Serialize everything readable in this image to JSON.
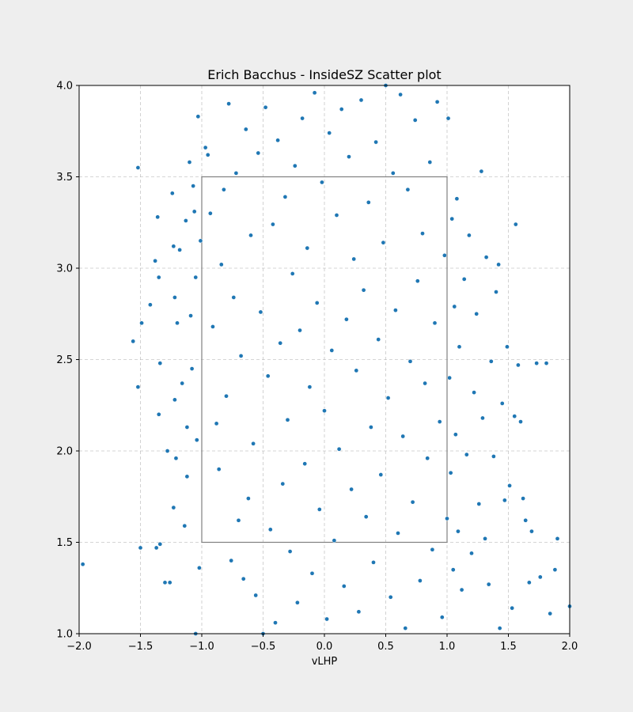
{
  "chart_data": {
    "type": "scatter",
    "title": "Erich Bacchus - InsideSZ Scatter plot",
    "xlabel": "vLHP",
    "ylabel": "",
    "xlim": [
      -2.0,
      2.0
    ],
    "ylim": [
      1.0,
      4.0
    ],
    "xticks": [
      "−2.0",
      "−1.5",
      "−1.0",
      "−0.5",
      "0.0",
      "0.5",
      "1.0",
      "1.5",
      "2.0"
    ],
    "yticks": [
      "1.0",
      "1.5",
      "2.0",
      "2.5",
      "3.0",
      "3.5",
      "4.0"
    ],
    "grid": true,
    "legend": "none",
    "strike_zone": {
      "x": [
        -1.0,
        1.0
      ],
      "y": [
        1.5,
        3.5
      ]
    },
    "marker_color": "#1f77b4",
    "points": [
      [
        -1.97,
        1.38
      ],
      [
        -1.52,
        3.55
      ],
      [
        -1.52,
        2.35
      ],
      [
        -1.56,
        2.6
      ],
      [
        -1.49,
        2.7
      ],
      [
        -1.5,
        1.47
      ],
      [
        -1.42,
        2.8
      ],
      [
        -1.38,
        3.04
      ],
      [
        -1.36,
        3.28
      ],
      [
        -1.35,
        2.95
      ],
      [
        -1.34,
        2.48
      ],
      [
        -1.35,
        2.2
      ],
      [
        -1.37,
        1.47
      ],
      [
        -1.34,
        1.49
      ],
      [
        -1.3,
        1.28
      ],
      [
        -1.26,
        1.28
      ],
      [
        -1.28,
        2.0
      ],
      [
        -1.24,
        3.41
      ],
      [
        -1.23,
        3.12
      ],
      [
        -1.22,
        2.84
      ],
      [
        -1.22,
        2.28
      ],
      [
        -1.23,
        1.69
      ],
      [
        -1.21,
        1.96
      ],
      [
        -1.2,
        2.7
      ],
      [
        -1.18,
        3.1
      ],
      [
        -1.16,
        2.37
      ],
      [
        -1.14,
        1.59
      ],
      [
        -1.13,
        3.26
      ],
      [
        -1.12,
        2.13
      ],
      [
        -1.12,
        1.86
      ],
      [
        -1.1,
        3.58
      ],
      [
        -1.09,
        2.74
      ],
      [
        -1.08,
        2.45
      ],
      [
        -1.07,
        3.45
      ],
      [
        -1.06,
        3.31
      ],
      [
        -1.05,
        2.95
      ],
      [
        -1.04,
        2.06
      ],
      [
        -1.03,
        3.83
      ],
      [
        -1.02,
        1.36
      ],
      [
        -1.01,
        3.15
      ],
      [
        -1.05,
        1.0
      ],
      [
        -0.97,
        3.66
      ],
      [
        -0.95,
        3.62
      ],
      [
        -0.93,
        3.3
      ],
      [
        -0.91,
        2.68
      ],
      [
        -0.88,
        2.15
      ],
      [
        -0.86,
        1.9
      ],
      [
        -0.84,
        3.02
      ],
      [
        -0.82,
        3.43
      ],
      [
        -0.8,
        2.3
      ],
      [
        -0.78,
        3.9
      ],
      [
        -0.76,
        1.4
      ],
      [
        -0.74,
        2.84
      ],
      [
        -0.72,
        3.52
      ],
      [
        -0.7,
        1.62
      ],
      [
        -0.68,
        2.52
      ],
      [
        -0.66,
        1.3
      ],
      [
        -0.64,
        3.76
      ],
      [
        -0.62,
        1.74
      ],
      [
        -0.6,
        3.18
      ],
      [
        -0.58,
        2.04
      ],
      [
        -0.56,
        1.21
      ],
      [
        -0.54,
        3.63
      ],
      [
        -0.52,
        2.76
      ],
      [
        -0.5,
        1.0
      ],
      [
        -0.48,
        3.88
      ],
      [
        -0.46,
        2.41
      ],
      [
        -0.44,
        1.57
      ],
      [
        -0.42,
        3.24
      ],
      [
        -0.4,
        1.06
      ],
      [
        -0.38,
        3.7
      ],
      [
        -0.36,
        2.59
      ],
      [
        -0.34,
        1.82
      ],
      [
        -0.32,
        3.39
      ],
      [
        -0.3,
        2.17
      ],
      [
        -0.28,
        1.45
      ],
      [
        -0.26,
        2.97
      ],
      [
        -0.24,
        3.56
      ],
      [
        -0.22,
        1.17
      ],
      [
        -0.2,
        2.66
      ],
      [
        -0.18,
        3.82
      ],
      [
        -0.16,
        1.93
      ],
      [
        -0.14,
        3.11
      ],
      [
        -0.12,
        2.35
      ],
      [
        -0.1,
        1.33
      ],
      [
        -0.08,
        3.96
      ],
      [
        -0.06,
        2.81
      ],
      [
        -0.04,
        1.68
      ],
      [
        -0.02,
        3.47
      ],
      [
        0.0,
        2.22
      ],
      [
        0.02,
        1.08
      ],
      [
        0.04,
        3.74
      ],
      [
        0.06,
        2.55
      ],
      [
        0.08,
        1.51
      ],
      [
        0.1,
        3.29
      ],
      [
        0.12,
        2.01
      ],
      [
        0.14,
        3.87
      ],
      [
        0.16,
        1.26
      ],
      [
        0.18,
        2.72
      ],
      [
        0.2,
        3.61
      ],
      [
        0.22,
        1.79
      ],
      [
        0.24,
        3.05
      ],
      [
        0.26,
        2.44
      ],
      [
        0.28,
        1.12
      ],
      [
        0.3,
        3.92
      ],
      [
        0.32,
        2.88
      ],
      [
        0.34,
        1.64
      ],
      [
        0.36,
        3.36
      ],
      [
        0.38,
        2.13
      ],
      [
        0.4,
        1.39
      ],
      [
        0.42,
        3.69
      ],
      [
        0.44,
        2.61
      ],
      [
        0.46,
        1.87
      ],
      [
        0.48,
        3.14
      ],
      [
        0.5,
        4.0
      ],
      [
        0.52,
        2.29
      ],
      [
        0.54,
        1.2
      ],
      [
        0.56,
        3.52
      ],
      [
        0.58,
        2.77
      ],
      [
        0.6,
        1.55
      ],
      [
        0.62,
        3.95
      ],
      [
        0.64,
        2.08
      ],
      [
        0.66,
        1.03
      ],
      [
        0.68,
        3.43
      ],
      [
        0.7,
        2.49
      ],
      [
        0.72,
        1.72
      ],
      [
        0.74,
        3.81
      ],
      [
        0.76,
        2.93
      ],
      [
        0.78,
        1.29
      ],
      [
        0.8,
        3.19
      ],
      [
        0.82,
        2.37
      ],
      [
        0.84,
        1.96
      ],
      [
        0.86,
        3.58
      ],
      [
        0.88,
        1.46
      ],
      [
        0.9,
        2.7
      ],
      [
        0.92,
        3.91
      ],
      [
        0.94,
        2.16
      ],
      [
        0.96,
        1.09
      ],
      [
        0.98,
        3.07
      ],
      [
        1.0,
        1.63
      ],
      [
        1.01,
        3.82
      ],
      [
        1.02,
        2.4
      ],
      [
        1.03,
        1.88
      ],
      [
        1.04,
        3.27
      ],
      [
        1.05,
        1.35
      ],
      [
        1.06,
        2.79
      ],
      [
        1.07,
        2.09
      ],
      [
        1.08,
        3.38
      ],
      [
        1.09,
        1.56
      ],
      [
        1.1,
        2.57
      ],
      [
        1.12,
        1.24
      ],
      [
        1.14,
        2.94
      ],
      [
        1.16,
        1.98
      ],
      [
        1.18,
        3.18
      ],
      [
        1.2,
        1.44
      ],
      [
        1.22,
        2.32
      ],
      [
        1.24,
        2.75
      ],
      [
        1.26,
        1.71
      ],
      [
        1.28,
        3.53
      ],
      [
        1.29,
        2.18
      ],
      [
        1.31,
        1.52
      ],
      [
        1.32,
        3.06
      ],
      [
        1.34,
        1.27
      ],
      [
        1.36,
        2.49
      ],
      [
        1.38,
        1.97
      ],
      [
        1.4,
        2.87
      ],
      [
        1.42,
        3.02
      ],
      [
        1.43,
        1.03
      ],
      [
        1.45,
        2.26
      ],
      [
        1.47,
        1.73
      ],
      [
        1.49,
        2.57
      ],
      [
        1.51,
        1.81
      ],
      [
        1.53,
        1.14
      ],
      [
        1.55,
        2.19
      ],
      [
        1.56,
        3.24
      ],
      [
        1.58,
        2.47
      ],
      [
        1.6,
        2.16
      ],
      [
        1.62,
        1.74
      ],
      [
        1.64,
        1.62
      ],
      [
        1.67,
        1.28
      ],
      [
        1.69,
        1.56
      ],
      [
        1.73,
        2.48
      ],
      [
        1.76,
        1.31
      ],
      [
        1.81,
        2.48
      ],
      [
        1.84,
        1.11
      ],
      [
        1.88,
        1.35
      ],
      [
        1.9,
        1.52
      ],
      [
        2.0,
        1.15
      ]
    ]
  }
}
